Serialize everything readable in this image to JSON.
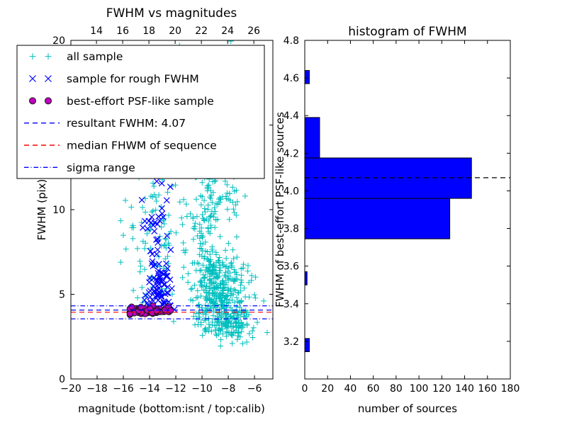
{
  "figure": {
    "background": "#ffffff"
  },
  "chart_data": [
    {
      "type": "scatter",
      "title": "FWHM vs magnitudes",
      "xlabel": "magnitude (bottom:isnt / top:calib)",
      "ylabel": "FWHM (pix)",
      "xlim": [
        -20,
        -4.6
      ],
      "ylim": [
        0,
        20
      ],
      "grid": false,
      "x_ticks": {
        "values": [
          -20,
          -18,
          -16,
          -14,
          -12,
          -10,
          -8,
          -6
        ],
        "labels": [
          "−20",
          "−18",
          "−16",
          "−14",
          "−12",
          "−10",
          "−8",
          "−6"
        ]
      },
      "top_ticks": {
        "values": [
          14,
          16,
          18,
          20,
          22,
          24,
          26
        ],
        "labels": [
          "14",
          "16",
          "18",
          "20",
          "22",
          "24",
          "26"
        ]
      },
      "calib_offset": 32.05,
      "y_ticks": {
        "values": [
          0,
          5,
          10,
          15,
          20
        ],
        "labels": [
          "0",
          "5",
          "10",
          "15",
          "20"
        ]
      },
      "hlines": [
        {
          "name": "resultant-fwhm-line",
          "y": 4.07,
          "style": "dashed",
          "color": "#0000ff"
        },
        {
          "name": "median-fwhm-line",
          "y": 3.94,
          "style": "dashed",
          "color": "#ff0000"
        },
        {
          "name": "sigma-upper-line",
          "y": 4.32,
          "style": "dashdot",
          "color": "#0000ff"
        },
        {
          "name": "sigma-lower-line",
          "y": 3.55,
          "style": "dashdot",
          "color": "#0000ff"
        }
      ],
      "legend": {
        "position": "upper left",
        "items": [
          {
            "label": "all sample",
            "type": "marker",
            "marker": "plus",
            "color": "#00bfbf"
          },
          {
            "label": "sample for rough FWHM",
            "type": "marker",
            "marker": "x",
            "color": "#0000ff"
          },
          {
            "label": "best-effort PSF-like sample",
            "type": "marker",
            "marker": "circle",
            "color": "#bf00bf",
            "edge": "#1a1a1a"
          },
          {
            "label": "resultant FWHM: 4.07",
            "type": "line",
            "dash": "dashed",
            "color": "#0000ff"
          },
          {
            "label": "median FHWM of sequence",
            "type": "line",
            "dash": "dashed",
            "color": "#ff0000"
          },
          {
            "label": "sigma range",
            "type": "line",
            "dash": "dashdot",
            "color": "#0000ff"
          }
        ]
      },
      "scatter": {
        "seed": 1234567,
        "series": [
          {
            "id": "all-sample",
            "name": "all sample",
            "marker": "plus",
            "color": "#00bfbf",
            "size": 8,
            "clusters": [
              {
                "count": 380,
                "mx": -8.6,
                "msd": 1.0,
                "fy": 4.8,
                "fsd": 1.3,
                "ymin": 2.5,
                "ymax": 9
              },
              {
                "count": 120,
                "mx": -9.7,
                "msd": 0.55,
                "fy": 8.5,
                "fsd": 2.2,
                "ymin": 5,
                "ymax": 13.5
              },
              {
                "count": 110,
                "mx": -13.2,
                "msd": 1.4,
                "fy": 8.5,
                "fsd": 2.5,
                "ymin": 4.5,
                "ymax": 14,
                "xmin": -16.2,
                "xmax": -10.5
              },
              {
                "count": 80,
                "mx": -7.6,
                "msd": 0.9,
                "fy": 3.2,
                "fsd": 0.6,
                "ymin": 1.9,
                "ymax": 4.6
              },
              {
                "count": 45,
                "mx": -9.8,
                "msd": 1.6,
                "fy": 15.5,
                "fsd": 2.2,
                "ymin": 12.5,
                "ymax": 20
              },
              {
                "count": 50,
                "mx": -8.3,
                "msd": 0.8,
                "fy": 11,
                "fsd": 1.5,
                "ymin": 9,
                "ymax": 14
              }
            ]
          },
          {
            "id": "rough-fwhm-sample",
            "name": "sample for rough FWHM",
            "marker": "x",
            "color": "#0000ff",
            "size": 8,
            "clusters": [
              {
                "count": 75,
                "mx": -13.2,
                "msd": 0.45,
                "fy": 5.4,
                "fsd": 0.8,
                "ymin": 4.1,
                "ymax": 7.5
              },
              {
                "count": 30,
                "mx": -13.4,
                "msd": 0.5,
                "fy": 9.0,
                "fsd": 1.7,
                "ymin": 6.5,
                "ymax": 12.5
              },
              {
                "count": 6,
                "mx": -12.8,
                "msd": 0.6,
                "fy": 12.5,
                "fsd": 1.0,
                "ymin": 11,
                "ymax": 14
              }
            ]
          },
          {
            "id": "psf-like-sample",
            "name": "best-effort PSF-like sample",
            "marker": "circle",
            "color": "#bf00bf",
            "edge": "#1a1a1a",
            "size": 8,
            "clusters": [
              {
                "count": 85,
                "mx": -13.9,
                "msd": 0.85,
                "fy": 4.03,
                "fsd": 0.13,
                "ymin": 3.75,
                "ymax": 4.33,
                "xmin": -15.5,
                "xmax": -12.4
              }
            ]
          }
        ]
      }
    },
    {
      "type": "bar",
      "orientation": "horizontal",
      "title": "histogram of FWHM",
      "xlabel": "number of sources",
      "ylabel": "FWHM of best-effort PSF-like sources",
      "xlim": [
        0,
        180
      ],
      "ylim": [
        3.0,
        4.8
      ],
      "grid": false,
      "x_ticks": {
        "values": [
          0,
          20,
          40,
          60,
          80,
          100,
          120,
          140,
          160,
          180
        ],
        "labels": [
          "0",
          "20",
          "40",
          "60",
          "80",
          "100",
          "120",
          "140",
          "160",
          "180"
        ]
      },
      "y_ticks": {
        "values": [
          3.2,
          3.4,
          3.6,
          3.8,
          4.0,
          4.2,
          4.4,
          4.6,
          4.8
        ],
        "labels": [
          "3.2",
          "3.4",
          "3.6",
          "3.8",
          "4.0",
          "4.2",
          "4.4",
          "4.6",
          "4.8"
        ]
      },
      "bar_color": "#0000ff",
      "bar_edge_color": "#000000",
      "bars": [
        {
          "y0": 3.145,
          "y1": 3.215,
          "value": 4
        },
        {
          "y0": 3.5,
          "y1": 3.57,
          "value": 2
        },
        {
          "y0": 3.745,
          "y1": 3.96,
          "value": 127
        },
        {
          "y0": 3.96,
          "y1": 4.175,
          "value": 146
        },
        {
          "y0": 4.175,
          "y1": 4.39,
          "value": 13
        },
        {
          "y0": 4.57,
          "y1": 4.64,
          "value": 4
        }
      ],
      "dashed_line": {
        "y": 4.07,
        "color": "#000000",
        "style": "dashed"
      }
    }
  ]
}
